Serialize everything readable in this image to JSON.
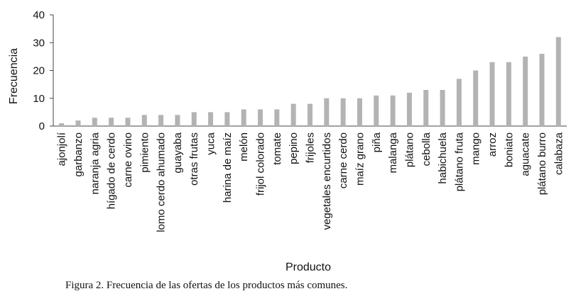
{
  "caption": "Figura 2. Frecuencia de las ofertas de los productos más comunes.",
  "chart_data": {
    "type": "bar",
    "title": "",
    "xlabel": "Producto",
    "ylabel": "Frecuencia",
    "ylim": [
      0,
      40
    ],
    "yticks": [
      0,
      10,
      20,
      30,
      40
    ],
    "grid": false,
    "bar_color": "#b3b3b3",
    "categories": [
      "ajonjolí",
      "garbanzo",
      "naranja agria",
      "hígado de cerdo",
      "carne ovino",
      "pimiento",
      "lomo cerdo ahumado",
      "guayaba",
      "otras frutas",
      "yuca",
      "harina de maíz",
      "melón",
      "frijol colorado",
      "tomate",
      "pepino",
      "frijoles",
      "vegetales encurtidos",
      "carne cerdo",
      "maíz grano",
      "piña",
      "malanga",
      "plátano",
      "cebolla",
      "habichuela",
      "plátano fruta",
      "mango",
      "arroz",
      "boniato",
      "aguacate",
      "plátano burro",
      "calabaza"
    ],
    "values": [
      1,
      2,
      3,
      3,
      3,
      4,
      4,
      4,
      5,
      5,
      5,
      6,
      6,
      6,
      8,
      8,
      10,
      10,
      10,
      11,
      11,
      12,
      13,
      13,
      17,
      20,
      23,
      23,
      25,
      26,
      32
    ]
  }
}
